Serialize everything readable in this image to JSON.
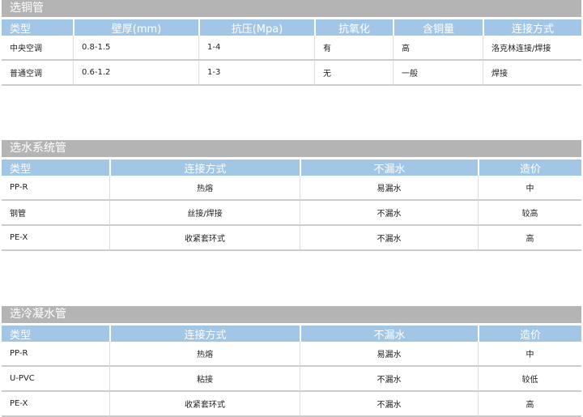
{
  "copper": {
    "title": "选铜管",
    "headers": [
      "类型",
      "壁厚(mm)",
      "抗压(Mpa)",
      "抗氧化",
      "含铜量",
      "连接方式"
    ],
    "rows": [
      [
        "中央空调",
        "0.8-1.5",
        "1-4",
        "有",
        "高",
        "洛克林连接/焊接"
      ],
      [
        "普通空调",
        "0.6-1.2",
        "1-3",
        "无",
        "一般",
        "焊接"
      ]
    ]
  },
  "water": {
    "title": "选水系统管",
    "headers": [
      "类型",
      "连接方式",
      "不漏水",
      "造价"
    ],
    "rows": [
      [
        "PP-R",
        "热熔",
        "易漏水",
        "中"
      ],
      [
        "钢管",
        "丝接/焊接",
        "不漏水",
        "较高"
      ],
      [
        "PE-X",
        "收紧套环式",
        "不漏水",
        "高"
      ]
    ]
  },
  "condensate": {
    "title": "选冷凝水管",
    "headers": [
      "类型",
      "连接方式",
      "不漏水",
      "造价"
    ],
    "rows": [
      [
        "PP-R",
        "热熔",
        "易漏水",
        "中"
      ],
      [
        "U-PVC",
        "粘接",
        "不漏水",
        "较低"
      ],
      [
        "PE-X",
        "收紧套环式",
        "不漏水",
        "高"
      ]
    ]
  },
  "colors": {
    "title_bar": "#b4b4b4",
    "header": "#a2c6e6"
  }
}
